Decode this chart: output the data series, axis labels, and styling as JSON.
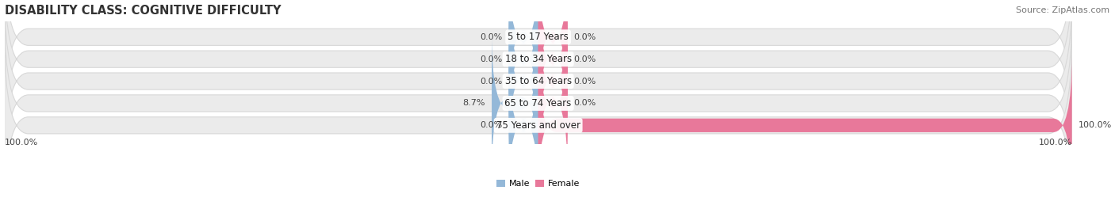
{
  "title": "DISABILITY CLASS: COGNITIVE DIFFICULTY",
  "source": "Source: ZipAtlas.com",
  "categories": [
    "5 to 17 Years",
    "18 to 34 Years",
    "35 to 64 Years",
    "65 to 74 Years",
    "75 Years and over"
  ],
  "male_values": [
    0.0,
    0.0,
    0.0,
    8.7,
    0.0
  ],
  "female_values": [
    0.0,
    0.0,
    0.0,
    0.0,
    100.0
  ],
  "male_color": "#94b8d8",
  "female_color": "#e8789a",
  "row_bg_color": "#ebebeb",
  "row_edge_color": "#d8d8d8",
  "max_val": 100.0,
  "stub_val": 5.5,
  "left_axis_label": "100.0%",
  "right_axis_label": "100.0%",
  "title_fontsize": 10.5,
  "source_fontsize": 8,
  "label_fontsize": 8,
  "category_fontsize": 8.5
}
